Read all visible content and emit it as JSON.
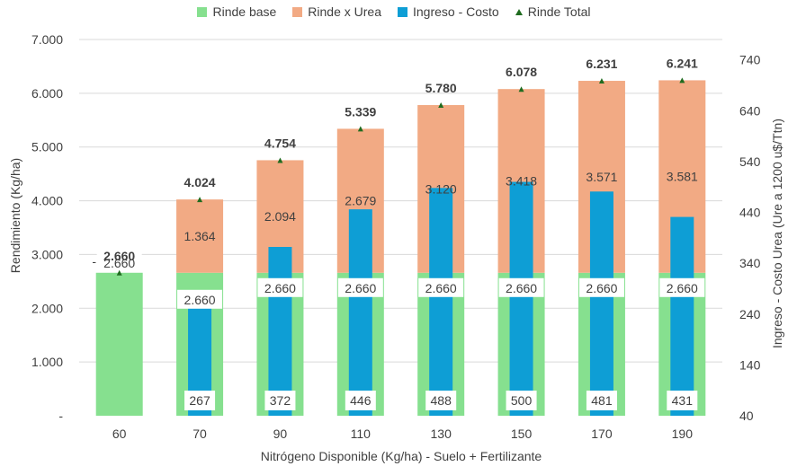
{
  "chart_data": {
    "type": "bar",
    "categories": [
      "60",
      "70",
      "90",
      "110",
      "130",
      "150",
      "170",
      "190"
    ],
    "xlabel": "Nitrógeno Disponible (Kg/ha) - Suelo + Fertilizante",
    "ylabel": "Rendimiento (Kg/ha)",
    "y2label": "Ingreso - Costo Urea (Ure a 1200 u$/Ttn)",
    "ylim": [
      0,
      7000
    ],
    "y2lim": [
      40,
      780
    ],
    "y_ticks": [
      "-",
      "1.000",
      "2.000",
      "3.000",
      "4.000",
      "5.000",
      "6.000",
      "7.000"
    ],
    "y2_ticks": [
      "40",
      "140",
      "240",
      "340",
      "440",
      "540",
      "640",
      "740"
    ],
    "series": [
      {
        "name": "Rinde base",
        "axis": "left",
        "color": "#86e08f",
        "values": [
          2660,
          2660,
          2660,
          2660,
          2660,
          2660,
          2660,
          2660
        ],
        "labels": [
          "2.660",
          "2.660",
          "2.660",
          "2.660",
          "2.660",
          "2.660",
          "2.660",
          "2.660"
        ]
      },
      {
        "name": "Rinde x Urea",
        "axis": "left",
        "color": "#f2aa84",
        "values": [
          0,
          1364,
          2094,
          2679,
          3120,
          3418,
          3571,
          3581
        ],
        "labels": [
          "-",
          "1.364",
          "2.094",
          "2.679",
          "3.120",
          "3.418",
          "3.571",
          "3.581"
        ]
      },
      {
        "name": "Ingreso - Costo",
        "axis": "right",
        "color": "#0e9ed5",
        "values": [
          null,
          267,
          372,
          446,
          488,
          500,
          481,
          431
        ],
        "labels": [
          "",
          "267",
          "372",
          "446",
          "488",
          "500",
          "481",
          "431"
        ]
      },
      {
        "name": "Rinde Total",
        "axis": "left",
        "color": "#1f6b1f",
        "values": [
          2660,
          4024,
          4754,
          5339,
          5780,
          6078,
          6231,
          6241
        ],
        "labels": [
          "2.660",
          "4.024",
          "4.754",
          "5.339",
          "5.780",
          "6.078",
          "6.231",
          "6.241"
        ]
      }
    ]
  }
}
